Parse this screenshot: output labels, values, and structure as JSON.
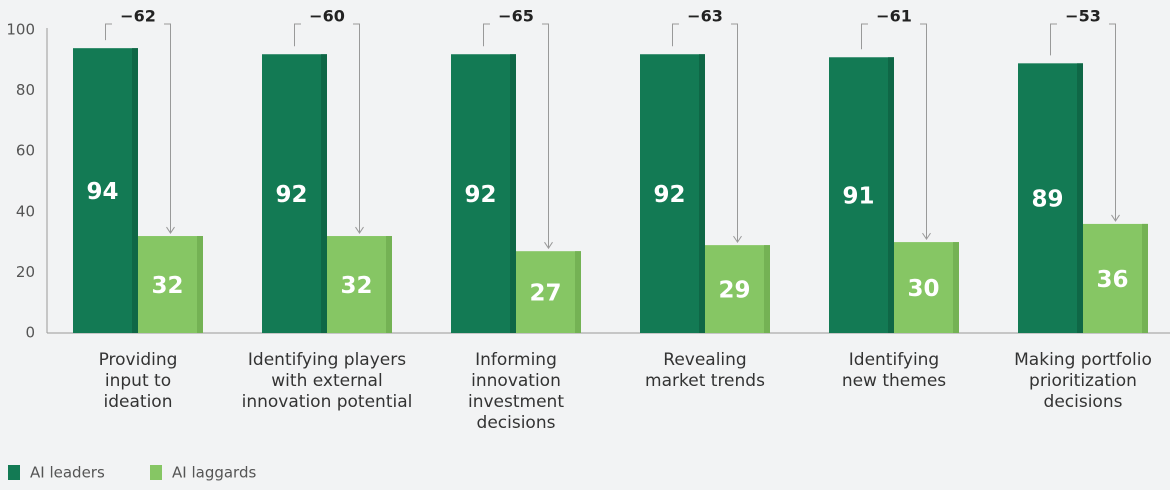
{
  "chart_data": {
    "type": "bar",
    "categories": [
      "Providing\ninput to\nideation",
      "Identifying players\nwith external\ninnovation potential",
      "Informing\ninnovation\ninvestment\ndecisions",
      "Revealing\nmarket trends",
      "Identifying\nnew themes",
      "Making portfolio\nprioritization\ndecisions"
    ],
    "series": [
      {
        "name": "AI leaders",
        "color": "#137a54",
        "values": [
          94,
          92,
          92,
          92,
          91,
          89
        ]
      },
      {
        "name": "AI laggards",
        "color": "#86c664",
        "values": [
          32,
          32,
          27,
          29,
          30,
          36
        ]
      }
    ],
    "differences": {
      "values": [
        -62,
        -60,
        -65,
        -63,
        -61,
        -53
      ],
      "value_labels": [
        "−62",
        "−60",
        "−65",
        "−63",
        "−61",
        "−53"
      ]
    },
    "ylim": [
      0,
      100
    ],
    "yticks": [
      0,
      20,
      40,
      60,
      80,
      100
    ],
    "grid": false,
    "legend": "bottom-left"
  }
}
